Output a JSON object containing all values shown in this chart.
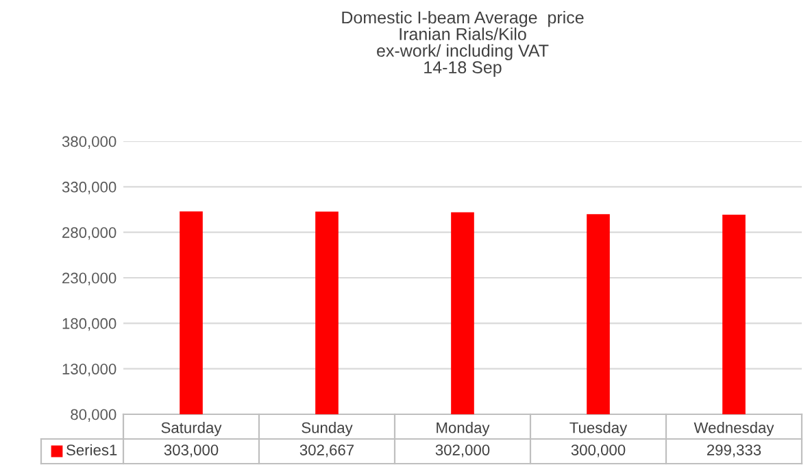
{
  "chart_data": {
    "type": "bar",
    "title": "Domestic I-beam Average  price\nIranian Rials/Kilo\nex-work/ including VAT\n14-18 Sep",
    "categories": [
      "Saturday",
      "Sunday",
      "Monday",
      "Tuesday",
      "Wednesday"
    ],
    "series": [
      {
        "name": "Series1",
        "color": "#ff0000",
        "values": [
          303000,
          302667,
          302000,
          300000,
          299333
        ],
        "value_labels": [
          "303,000",
          "302,667",
          "302,000",
          "300,000",
          "299,333"
        ]
      }
    ],
    "ylim": [
      80000,
      380000
    ],
    "yticks": [
      {
        "value": 80000,
        "label": "80,000"
      },
      {
        "value": 130000,
        "label": "130,000"
      },
      {
        "value": 180000,
        "label": "180,000"
      },
      {
        "value": 230000,
        "label": "230,000"
      },
      {
        "value": 280000,
        "label": "280,000"
      },
      {
        "value": 330000,
        "label": "330,000"
      },
      {
        "value": 380000,
        "label": "380,000"
      }
    ],
    "grid": "y",
    "legend": "bottom"
  }
}
